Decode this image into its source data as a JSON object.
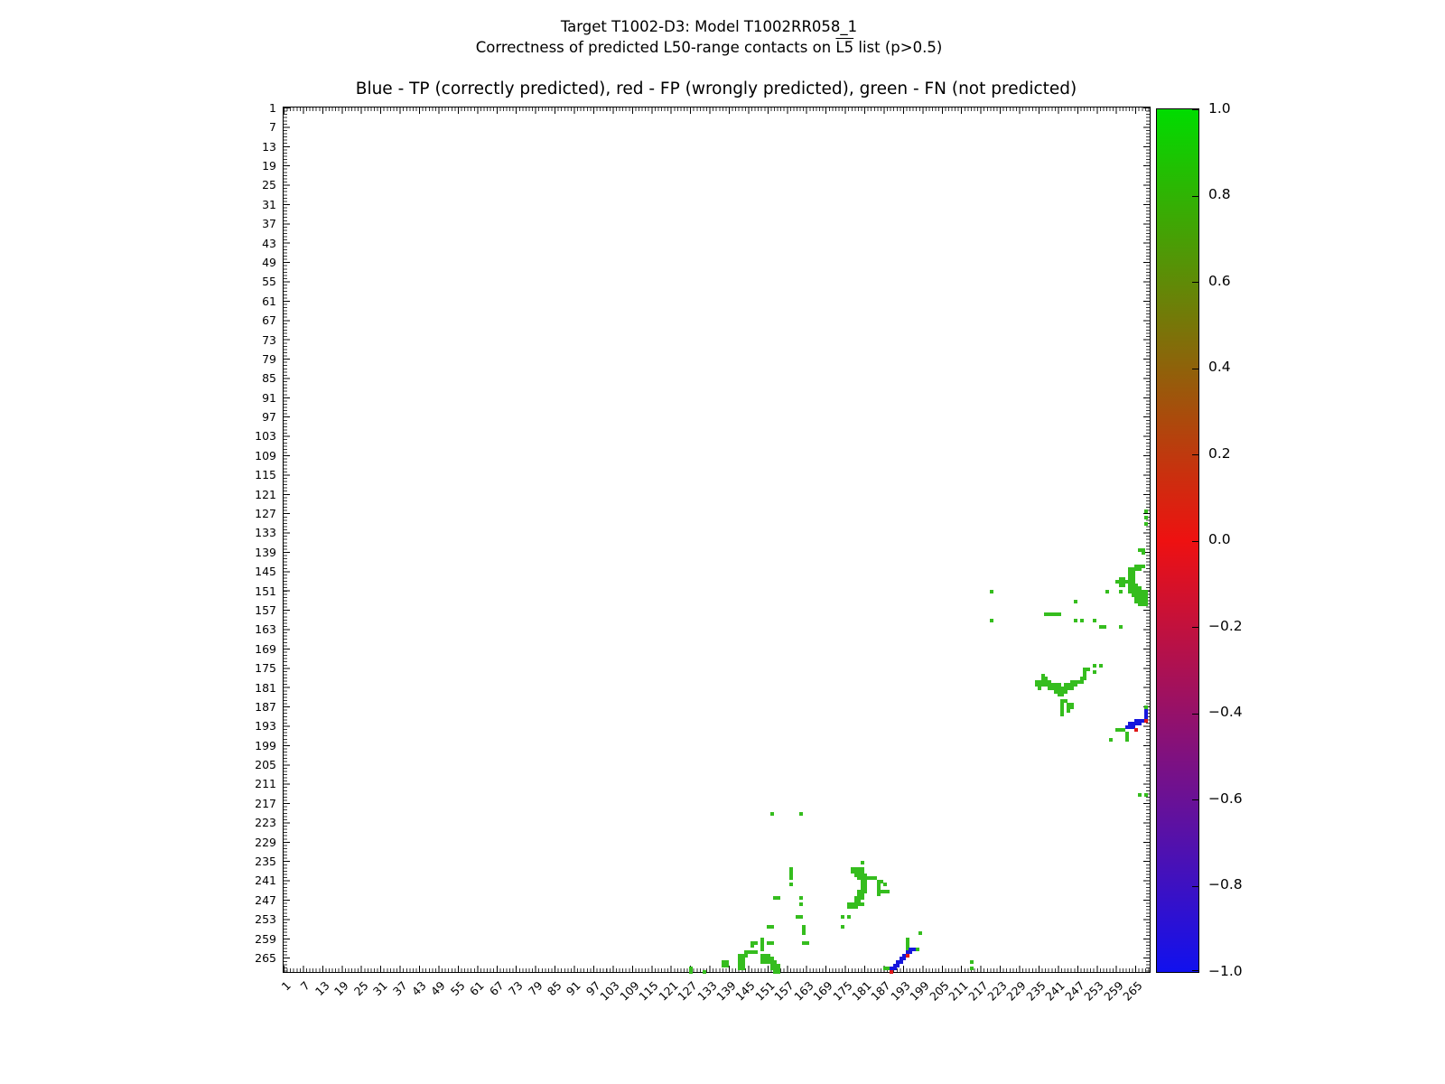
{
  "figure": {
    "suptitle_line1": "Target T1002-D3: Model T1002RR058_1",
    "suptitle_line2_prefix": "Correctness of predicted L50-range contacts on ",
    "suptitle_line2_overlined": "L5",
    "suptitle_line2_suffix": " list (p>0.5)"
  },
  "chart_data": {
    "type": "heatmap",
    "title": "Blue - TP (correctly predicted), red - FP (wrongly predicted), green - FN (not predicted)",
    "legend": {
      "blue": "TP (correctly predicted)",
      "red": "FP (wrongly predicted)",
      "green": "FN (not predicted)"
    },
    "axes": {
      "x_min": 1,
      "x_max": 269,
      "y_min": 1,
      "y_max": 269,
      "y_direction": "top-to-bottom",
      "x_tick_labels": [
        1,
        7,
        13,
        19,
        25,
        31,
        37,
        43,
        49,
        55,
        61,
        67,
        73,
        79,
        85,
        91,
        97,
        103,
        109,
        115,
        121,
        127,
        133,
        139,
        145,
        151,
        157,
        163,
        169,
        175,
        181,
        187,
        193,
        199,
        205,
        211,
        217,
        223,
        229,
        235,
        241,
        247,
        253,
        259,
        265
      ],
      "y_tick_labels": [
        1,
        7,
        13,
        19,
        25,
        31,
        37,
        43,
        49,
        55,
        61,
        67,
        73,
        79,
        85,
        91,
        97,
        103,
        109,
        115,
        121,
        127,
        133,
        139,
        145,
        151,
        157,
        163,
        169,
        175,
        181,
        187,
        193,
        199,
        205,
        211,
        217,
        223,
        229,
        235,
        241,
        247,
        253,
        259,
        265
      ]
    },
    "colors": {
      "fn_green": "#35bd1e",
      "tp_blue": "#1616dd",
      "fp_red": "#e01616"
    },
    "colorbar": {
      "labels": [
        "1.0",
        "0.8",
        "0.6",
        "0.4",
        "0.2",
        "0.0",
        "−0.2",
        "−0.4",
        "−0.6",
        "−0.8",
        "−1.0"
      ],
      "vmin": -1.0,
      "vmax": 1.0,
      "gradient_stops": [
        {
          "value": 1.0,
          "color": "#00dc00"
        },
        {
          "value": 0.0,
          "color": "#ee1111"
        },
        {
          "value": -1.0,
          "color": "#1111ee"
        }
      ]
    },
    "points": {
      "fn_green": [
        [
          268,
          126
        ],
        [
          268,
          128
        ],
        [
          268,
          130
        ],
        [
          266,
          138
        ],
        [
          267,
          138
        ],
        [
          267,
          139
        ],
        [
          265,
          143
        ],
        [
          266,
          143
        ],
        [
          267,
          143
        ],
        [
          263,
          144
        ],
        [
          264,
          144
        ],
        [
          265,
          144
        ],
        [
          266,
          144
        ],
        [
          263,
          145
        ],
        [
          264,
          145
        ],
        [
          263,
          146
        ],
        [
          264,
          146
        ],
        [
          260,
          147
        ],
        [
          261,
          147
        ],
        [
          263,
          147
        ],
        [
          264,
          147
        ],
        [
          259,
          148
        ],
        [
          260,
          148
        ],
        [
          261,
          148
        ],
        [
          262,
          148
        ],
        [
          263,
          148
        ],
        [
          264,
          148
        ],
        [
          260,
          149
        ],
        [
          261,
          149
        ],
        [
          263,
          149
        ],
        [
          264,
          149
        ],
        [
          265,
          149
        ],
        [
          263,
          150
        ],
        [
          264,
          150
        ],
        [
          265,
          150
        ],
        [
          266,
          150
        ],
        [
          256,
          151
        ],
        [
          260,
          151
        ],
        [
          263,
          151
        ],
        [
          264,
          151
        ],
        [
          265,
          151
        ],
        [
          266,
          151
        ],
        [
          267,
          151
        ],
        [
          268,
          151
        ],
        [
          220,
          151
        ],
        [
          264,
          152
        ],
        [
          265,
          152
        ],
        [
          266,
          152
        ],
        [
          267,
          152
        ],
        [
          268,
          152
        ],
        [
          265,
          153
        ],
        [
          266,
          153
        ],
        [
          267,
          153
        ],
        [
          268,
          153
        ],
        [
          246,
          154
        ],
        [
          265,
          154
        ],
        [
          266,
          154
        ],
        [
          267,
          154
        ],
        [
          268,
          154
        ],
        [
          266,
          155
        ],
        [
          267,
          155
        ],
        [
          268,
          155
        ],
        [
          237,
          158
        ],
        [
          238,
          158
        ],
        [
          239,
          158
        ],
        [
          240,
          158
        ],
        [
          241,
          158
        ],
        [
          220,
          160
        ],
        [
          246,
          160
        ],
        [
          248,
          160
        ],
        [
          252,
          160
        ],
        [
          254,
          162
        ],
        [
          255,
          162
        ],
        [
          260,
          162
        ],
        [
          252,
          174
        ],
        [
          254,
          174
        ],
        [
          249,
          175
        ],
        [
          250,
          175
        ],
        [
          249,
          176
        ],
        [
          252,
          176
        ],
        [
          236,
          177
        ],
        [
          249,
          177
        ],
        [
          236,
          178
        ],
        [
          237,
          178
        ],
        [
          248,
          178
        ],
        [
          249,
          178
        ],
        [
          234,
          179
        ],
        [
          235,
          179
        ],
        [
          236,
          179
        ],
        [
          237,
          179
        ],
        [
          238,
          179
        ],
        [
          245,
          179
        ],
        [
          246,
          179
        ],
        [
          247,
          179
        ],
        [
          248,
          179
        ],
        [
          234,
          180
        ],
        [
          235,
          180
        ],
        [
          236,
          180
        ],
        [
          237,
          180
        ],
        [
          238,
          180
        ],
        [
          239,
          180
        ],
        [
          240,
          180
        ],
        [
          241,
          180
        ],
        [
          243,
          180
        ],
        [
          244,
          180
        ],
        [
          245,
          180
        ],
        [
          246,
          180
        ],
        [
          235,
          181
        ],
        [
          238,
          181
        ],
        [
          239,
          181
        ],
        [
          240,
          181
        ],
        [
          241,
          181
        ],
        [
          242,
          181
        ],
        [
          243,
          181
        ],
        [
          244,
          181
        ],
        [
          245,
          181
        ],
        [
          240,
          182
        ],
        [
          241,
          182
        ],
        [
          242,
          182
        ],
        [
          243,
          182
        ],
        [
          241,
          183
        ],
        [
          242,
          183
        ],
        [
          242,
          185
        ],
        [
          243,
          185
        ],
        [
          242,
          186
        ],
        [
          244,
          186
        ],
        [
          245,
          186
        ],
        [
          242,
          187
        ],
        [
          244,
          187
        ],
        [
          245,
          187
        ],
        [
          268,
          187
        ],
        [
          242,
          188
        ],
        [
          244,
          188
        ],
        [
          242,
          189
        ],
        [
          259,
          194
        ],
        [
          260,
          194
        ],
        [
          261,
          194
        ],
        [
          262,
          195
        ],
        [
          262,
          196
        ],
        [
          262,
          197
        ],
        [
          257,
          197
        ],
        [
          266,
          214
        ],
        [
          268,
          214
        ],
        [
          152,
          220
        ],
        [
          161,
          220
        ],
        [
          180,
          235
        ],
        [
          158,
          237
        ],
        [
          177,
          237
        ],
        [
          178,
          237
        ],
        [
          179,
          237
        ],
        [
          180,
          237
        ],
        [
          158,
          238
        ],
        [
          177,
          238
        ],
        [
          178,
          238
        ],
        [
          179,
          238
        ],
        [
          180,
          238
        ],
        [
          158,
          239
        ],
        [
          178,
          239
        ],
        [
          179,
          239
        ],
        [
          180,
          239
        ],
        [
          181,
          239
        ],
        [
          158,
          240
        ],
        [
          179,
          240
        ],
        [
          180,
          240
        ],
        [
          181,
          240
        ],
        [
          182,
          240
        ],
        [
          183,
          240
        ],
        [
          184,
          240
        ],
        [
          180,
          241
        ],
        [
          181,
          241
        ],
        [
          185,
          241
        ],
        [
          186,
          241
        ],
        [
          158,
          242
        ],
        [
          180,
          242
        ],
        [
          181,
          242
        ],
        [
          185,
          242
        ],
        [
          187,
          242
        ],
        [
          180,
          243
        ],
        [
          181,
          243
        ],
        [
          185,
          243
        ],
        [
          179,
          244
        ],
        [
          180,
          244
        ],
        [
          181,
          244
        ],
        [
          185,
          244
        ],
        [
          186,
          244
        ],
        [
          187,
          244
        ],
        [
          188,
          244
        ],
        [
          179,
          245
        ],
        [
          180,
          245
        ],
        [
          185,
          245
        ],
        [
          153,
          246
        ],
        [
          154,
          246
        ],
        [
          161,
          246
        ],
        [
          178,
          246
        ],
        [
          179,
          246
        ],
        [
          180,
          246
        ],
        [
          178,
          247
        ],
        [
          179,
          247
        ],
        [
          161,
          248
        ],
        [
          176,
          248
        ],
        [
          177,
          248
        ],
        [
          178,
          248
        ],
        [
          179,
          248
        ],
        [
          180,
          248
        ],
        [
          176,
          249
        ],
        [
          177,
          249
        ],
        [
          178,
          249
        ],
        [
          160,
          252
        ],
        [
          161,
          252
        ],
        [
          174,
          252
        ],
        [
          176,
          252
        ],
        [
          151,
          255
        ],
        [
          152,
          255
        ],
        [
          162,
          255
        ],
        [
          174,
          255
        ],
        [
          162,
          256
        ],
        [
          162,
          257
        ],
        [
          198,
          257
        ],
        [
          149,
          259
        ],
        [
          194,
          259
        ],
        [
          146,
          260
        ],
        [
          147,
          260
        ],
        [
          149,
          260
        ],
        [
          151,
          260
        ],
        [
          152,
          260
        ],
        [
          162,
          260
        ],
        [
          163,
          260
        ],
        [
          194,
          260
        ],
        [
          146,
          261
        ],
        [
          149,
          261
        ],
        [
          194,
          261
        ],
        [
          149,
          262
        ],
        [
          194,
          262
        ],
        [
          197,
          262
        ],
        [
          144,
          263
        ],
        [
          145,
          263
        ],
        [
          146,
          263
        ],
        [
          147,
          263
        ],
        [
          142,
          264
        ],
        [
          143,
          264
        ],
        [
          144,
          264
        ],
        [
          149,
          264
        ],
        [
          150,
          264
        ],
        [
          151,
          264
        ],
        [
          142,
          265
        ],
        [
          143,
          265
        ],
        [
          149,
          265
        ],
        [
          150,
          265
        ],
        [
          151,
          265
        ],
        [
          152,
          265
        ],
        [
          137,
          266
        ],
        [
          138,
          266
        ],
        [
          142,
          266
        ],
        [
          143,
          266
        ],
        [
          149,
          266
        ],
        [
          150,
          266
        ],
        [
          151,
          266
        ],
        [
          152,
          266
        ],
        [
          153,
          266
        ],
        [
          214,
          266
        ],
        [
          137,
          267
        ],
        [
          138,
          267
        ],
        [
          142,
          267
        ],
        [
          143,
          267
        ],
        [
          152,
          267
        ],
        [
          153,
          267
        ],
        [
          154,
          267
        ],
        [
          127,
          268
        ],
        [
          142,
          268
        ],
        [
          143,
          268
        ],
        [
          152,
          268
        ],
        [
          153,
          268
        ],
        [
          154,
          268
        ],
        [
          187,
          268
        ],
        [
          188,
          268
        ],
        [
          214,
          268
        ],
        [
          127,
          269
        ],
        [
          131,
          269
        ],
        [
          153,
          269
        ],
        [
          154,
          269
        ]
      ],
      "tp_blue": [
        [
          268,
          188
        ],
        [
          268,
          189
        ],
        [
          268,
          190
        ],
        [
          265,
          191
        ],
        [
          266,
          191
        ],
        [
          267,
          191
        ],
        [
          263,
          192
        ],
        [
          264,
          192
        ],
        [
          265,
          192
        ],
        [
          266,
          192
        ],
        [
          262,
          193
        ],
        [
          263,
          193
        ],
        [
          264,
          193
        ],
        [
          195,
          262
        ],
        [
          196,
          262
        ],
        [
          194,
          263
        ],
        [
          195,
          263
        ],
        [
          193,
          264
        ],
        [
          192,
          265
        ],
        [
          193,
          265
        ],
        [
          191,
          266
        ],
        [
          192,
          266
        ],
        [
          190,
          267
        ],
        [
          191,
          267
        ],
        [
          189,
          268
        ],
        [
          190,
          268
        ]
      ],
      "fp_red": [
        [
          268,
          191
        ],
        [
          265,
          194
        ],
        [
          194,
          264
        ],
        [
          189,
          269
        ]
      ]
    }
  }
}
